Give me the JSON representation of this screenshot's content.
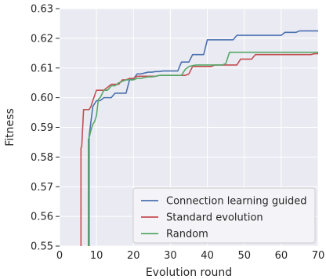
{
  "chart_data": {
    "type": "line",
    "xlabel": "Evolution round",
    "ylabel": "Fitness",
    "xlim": [
      0,
      70
    ],
    "ylim": [
      0.55,
      0.63
    ],
    "xticks": [
      "0",
      "10",
      "20",
      "30",
      "40",
      "50",
      "60",
      "70"
    ],
    "yticks": [
      "0.55",
      "0.56",
      "0.57",
      "0.58",
      "0.59",
      "0.60",
      "0.61",
      "0.62",
      "0.63"
    ],
    "grid": true,
    "legend_position": "bottom-right",
    "series": [
      {
        "name": "Connection learning guided",
        "color": "#4c72b0",
        "x": [
          8,
          8,
          9,
          10,
          11,
          12,
          13,
          14,
          15,
          16,
          17,
          18,
          19,
          20,
          21,
          22,
          23,
          24,
          25,
          26,
          27,
          28,
          29,
          30,
          31,
          32,
          33,
          34,
          35,
          36,
          37,
          38,
          39,
          40,
          41,
          42,
          43,
          44,
          45,
          46,
          47,
          48,
          49,
          50,
          51,
          52,
          53,
          54,
          55,
          56,
          57,
          58,
          59,
          60,
          61,
          62,
          63,
          64,
          65,
          66,
          67,
          68,
          69,
          70
        ],
        "y": [
          0.55,
          0.587,
          0.597,
          0.599,
          0.599,
          0.6,
          0.6,
          0.6,
          0.6015,
          0.6015,
          0.6015,
          0.6015,
          0.6063,
          0.6063,
          0.608,
          0.608,
          0.6083,
          0.6086,
          0.6086,
          0.6088,
          0.6088,
          0.609,
          0.609,
          0.609,
          0.609,
          0.609,
          0.612,
          0.612,
          0.612,
          0.6145,
          0.6145,
          0.6145,
          0.6145,
          0.6195,
          0.6195,
          0.6195,
          0.6195,
          0.6195,
          0.6195,
          0.6195,
          0.6195,
          0.621,
          0.621,
          0.621,
          0.621,
          0.621,
          0.621,
          0.621,
          0.621,
          0.621,
          0.621,
          0.621,
          0.621,
          0.621,
          0.622,
          0.622,
          0.622,
          0.622,
          0.6225,
          0.6225,
          0.6225,
          0.6225,
          0.6225,
          0.6225
        ]
      },
      {
        "name": "Standard evolution",
        "color": "#c44e52",
        "x": [
          5.8,
          5.8,
          6,
          6.5,
          7,
          7.5,
          8,
          8.5,
          9,
          10,
          11,
          12,
          13,
          14,
          15,
          16,
          17,
          18,
          19,
          20,
          21,
          22,
          23,
          24,
          25,
          26,
          27,
          28,
          29,
          30,
          31,
          32,
          33,
          34,
          35,
          36,
          37,
          38,
          39,
          40,
          41,
          42,
          43,
          44,
          45,
          46,
          47,
          48,
          49,
          50,
          51,
          52,
          53,
          54,
          55,
          56,
          57,
          58,
          59,
          60,
          61,
          62,
          63,
          64,
          65,
          66,
          67,
          68,
          69,
          70
        ],
        "y": [
          0.55,
          0.583,
          0.5835,
          0.596,
          0.596,
          0.596,
          0.596,
          0.597,
          0.599,
          0.6025,
          0.6025,
          0.6025,
          0.6035,
          0.6045,
          0.6045,
          0.6045,
          0.606,
          0.606,
          0.6065,
          0.6065,
          0.6072,
          0.6072,
          0.6072,
          0.6072,
          0.6072,
          0.6072,
          0.6075,
          0.6075,
          0.6075,
          0.6075,
          0.6075,
          0.6075,
          0.6075,
          0.6075,
          0.608,
          0.6105,
          0.6105,
          0.6105,
          0.6105,
          0.6105,
          0.6105,
          0.611,
          0.611,
          0.611,
          0.611,
          0.611,
          0.611,
          0.611,
          0.613,
          0.613,
          0.613,
          0.613,
          0.6145,
          0.6145,
          0.6145,
          0.6145,
          0.6145,
          0.6145,
          0.6145,
          0.6145,
          0.6145,
          0.6145,
          0.6145,
          0.6145,
          0.6145,
          0.6145,
          0.6145,
          0.6145,
          0.6148,
          0.6148
        ]
      },
      {
        "name": "Random",
        "color": "#55a868",
        "x": [
          7.8,
          7.8,
          8,
          8.5,
          9,
          9.5,
          10,
          10.5,
          11,
          12,
          13,
          14,
          15,
          16,
          17,
          18,
          19,
          20,
          21,
          22,
          23,
          24,
          25,
          26,
          27,
          28,
          29,
          30,
          31,
          32,
          33,
          34,
          35,
          36,
          37,
          38,
          39,
          40,
          41,
          42,
          43,
          44,
          45,
          46,
          47,
          48,
          49,
          50,
          51,
          52,
          53,
          54,
          55,
          56,
          57,
          58,
          59,
          60,
          61,
          62,
          63,
          64,
          65,
          66,
          67,
          68,
          69,
          70
        ],
        "y": [
          0.55,
          0.586,
          0.5865,
          0.589,
          0.591,
          0.592,
          0.594,
          0.5995,
          0.6,
          0.6025,
          0.6025,
          0.604,
          0.604,
          0.605,
          0.6055,
          0.606,
          0.606,
          0.606,
          0.6065,
          0.6065,
          0.6068,
          0.607,
          0.607,
          0.6072,
          0.6075,
          0.6075,
          0.6075,
          0.6075,
          0.6075,
          0.6075,
          0.6075,
          0.6095,
          0.6105,
          0.6108,
          0.611,
          0.611,
          0.611,
          0.611,
          0.611,
          0.611,
          0.611,
          0.611,
          0.6115,
          0.6153,
          0.6153,
          0.6153,
          0.6153,
          0.6153,
          0.6153,
          0.6153,
          0.6153,
          0.6153,
          0.6153,
          0.6153,
          0.6153,
          0.6153,
          0.6153,
          0.6153,
          0.6153,
          0.6153,
          0.6153,
          0.6153,
          0.6153,
          0.6153,
          0.6153,
          0.6153,
          0.6153,
          0.6153
        ]
      }
    ]
  },
  "style": {
    "plot_background": "#eaeaf2",
    "grid_color": "#ffffff",
    "legend_background": "#f4f4f8",
    "legend_border": "#cccccc"
  }
}
